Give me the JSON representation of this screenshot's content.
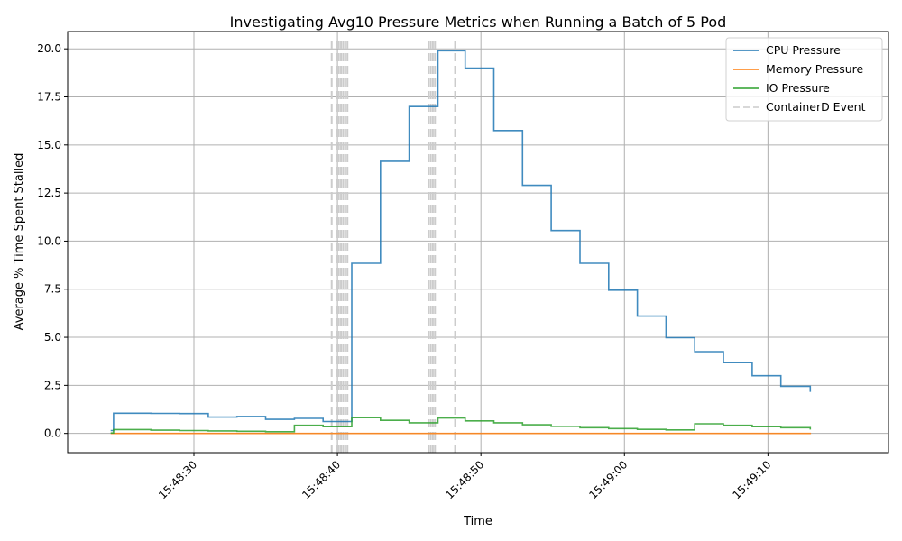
{
  "chart_data": {
    "type": "line",
    "title": "Investigating Avg10 Pressure Metrics when Running a Batch of 5 Pod",
    "xlabel": "Time",
    "ylabel": "Average % Time Spent Stalled",
    "xlim_seconds": [
      21.2,
      78.4
    ],
    "ylim": [
      -1.0,
      20.9
    ],
    "grid": true,
    "legend_position": "top-right",
    "x_ticks": [
      {
        "t": 30,
        "label": "15:48:30"
      },
      {
        "t": 40,
        "label": "15:48:40"
      },
      {
        "t": 50,
        "label": "15:48:50"
      },
      {
        "t": 60,
        "label": "15:49:00"
      },
      {
        "t": 70,
        "label": "15:49:10"
      }
    ],
    "y_ticks": [
      {
        "v": 0.0,
        "label": "0.0"
      },
      {
        "v": 2.5,
        "label": "2.5"
      },
      {
        "v": 5.0,
        "label": "5.0"
      },
      {
        "v": 7.5,
        "label": "7.5"
      },
      {
        "v": 10.0,
        "label": "10.0"
      },
      {
        "v": 12.5,
        "label": "12.5"
      },
      {
        "v": 15.0,
        "label": "15.0"
      },
      {
        "v": 17.5,
        "label": "17.5"
      },
      {
        "v": 20.0,
        "label": "20.0"
      }
    ],
    "series": [
      {
        "name": "CPU Pressure",
        "color": "#1f77b4",
        "style": "step",
        "x": [
          24.2,
          24.4,
          27.0,
          29.0,
          31.0,
          33.0,
          35.0,
          37.0,
          39.0,
          41.0,
          43.0,
          45.0,
          47.0,
          48.9,
          50.9,
          52.9,
          54.9,
          56.9,
          58.9,
          60.9,
          62.9,
          64.9,
          66.9,
          68.9,
          70.9,
          72.9,
          72.95,
          73.0
        ],
        "y": [
          0.15,
          1.05,
          1.04,
          1.03,
          0.85,
          0.88,
          0.73,
          0.78,
          0.62,
          8.85,
          14.15,
          17.0,
          19.9,
          19.0,
          15.75,
          12.9,
          10.55,
          8.85,
          7.45,
          6.1,
          4.98,
          4.25,
          3.68,
          3.0,
          2.45,
          2.45,
          2.2,
          2.2
        ]
      },
      {
        "name": "Memory Pressure",
        "color": "#ff7f0e",
        "style": "step",
        "x": [
          24.2,
          73.0
        ],
        "y": [
          0.0,
          0.0
        ]
      },
      {
        "name": "IO Pressure",
        "color": "#2ca02c",
        "style": "step",
        "x": [
          24.2,
          24.4,
          27.0,
          29.0,
          31.0,
          33.0,
          35.0,
          37.0,
          39.0,
          41.0,
          43.0,
          45.0,
          47.0,
          48.9,
          50.9,
          52.9,
          54.9,
          56.9,
          58.9,
          60.9,
          62.9,
          64.9,
          66.9,
          68.9,
          70.9,
          72.95,
          73.0
        ],
        "y": [
          0.02,
          0.2,
          0.17,
          0.15,
          0.13,
          0.11,
          0.09,
          0.42,
          0.35,
          0.82,
          0.68,
          0.55,
          0.8,
          0.65,
          0.55,
          0.45,
          0.37,
          0.3,
          0.25,
          0.21,
          0.18,
          0.5,
          0.42,
          0.35,
          0.3,
          0.24,
          0.24
        ]
      }
    ],
    "events": {
      "name": "ContainerD Event",
      "color": "#cccccc",
      "times": [
        39.6,
        39.95,
        40.1,
        40.25,
        40.4,
        40.55,
        40.7,
        46.35,
        46.5,
        46.65,
        46.8,
        48.2
      ]
    },
    "legend": [
      {
        "label": "CPU Pressure",
        "color": "#1f77b4",
        "dashed": false
      },
      {
        "label": "Memory Pressure",
        "color": "#ff7f0e",
        "dashed": false
      },
      {
        "label": "IO Pressure",
        "color": "#2ca02c",
        "dashed": false
      },
      {
        "label": "ContainerD Event",
        "color": "#cccccc",
        "dashed": true
      }
    ]
  }
}
